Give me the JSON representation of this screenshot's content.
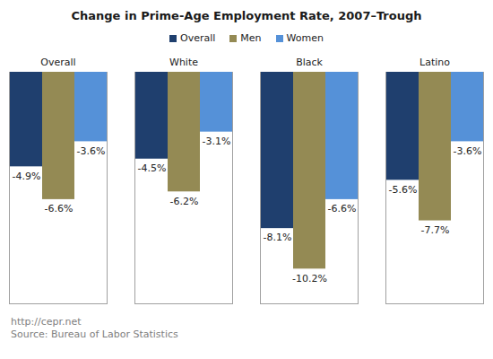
{
  "chart_data": {
    "type": "bar",
    "title": "Change in Prime-Age Employment Rate, 2007–Trough",
    "categories": [
      "Overall",
      "White",
      "Black",
      "Latino"
    ],
    "series": [
      {
        "name": "Overall",
        "color": "#1f3f6e",
        "values": [
          -4.9,
          -4.5,
          -8.1,
          -5.6
        ],
        "value_labels": [
          "-4.9%",
          "-4.5%",
          "-8.1%",
          "-5.6%"
        ]
      },
      {
        "name": "Men",
        "color": "#948a54",
        "values": [
          -6.6,
          -6.2,
          -10.2,
          -7.7
        ],
        "value_labels": [
          "-6.6%",
          "-6.2%",
          "-10.2%",
          "-7.7%"
        ]
      },
      {
        "name": "Women",
        "color": "#5591d8",
        "values": [
          -3.6,
          -3.1,
          -6.6,
          -3.6
        ],
        "value_labels": [
          "-3.6%",
          "-3.1%",
          "-6.6%",
          "-3.6%"
        ]
      }
    ],
    "ylim": [
      -12,
      0
    ],
    "legend": "top",
    "data_labels": true,
    "tick_labels": "x",
    "annotations": [
      "http://cepr.net",
      "Source: Bureau of Labor Statistics"
    ]
  }
}
